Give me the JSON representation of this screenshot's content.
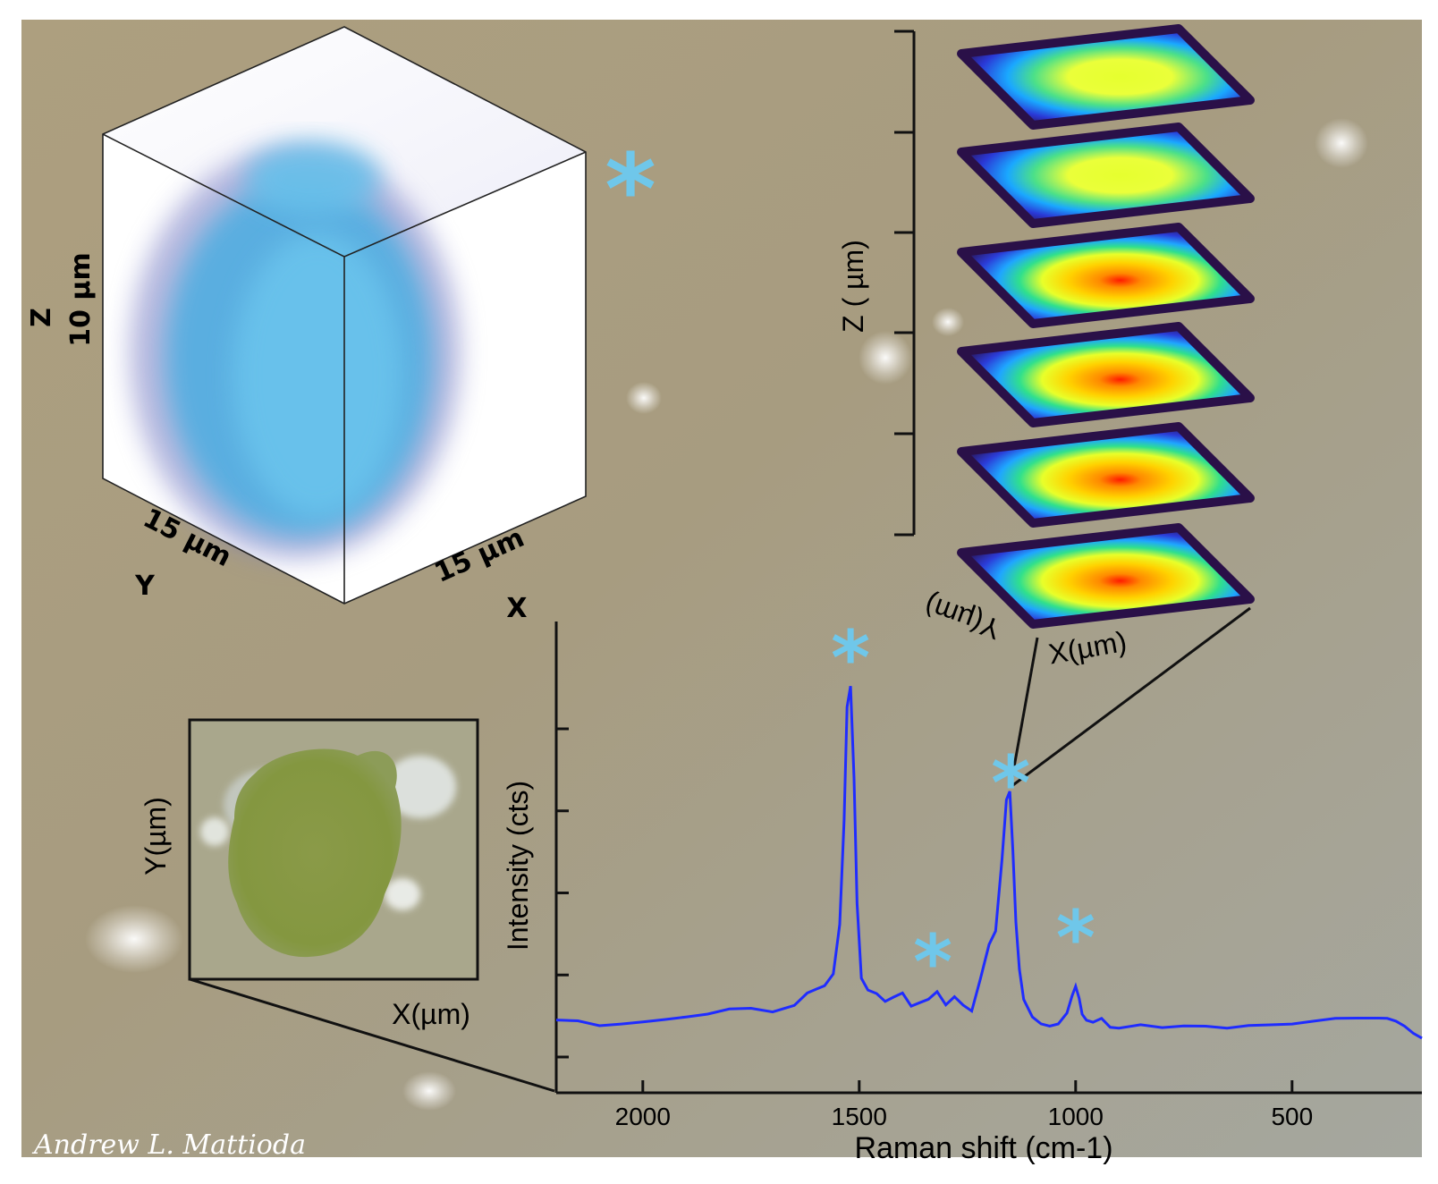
{
  "colors": {
    "background": "#a59a7e",
    "spectrum_line": "#1f2cff",
    "asterisk": "#6fc7ea",
    "cube_blue": "#5fb6e2",
    "cube_edge": "#8080c0"
  },
  "cube": {
    "z_axis": "Z",
    "z_size": "10 µm",
    "y_axis": "Y",
    "y_size": "15 µm",
    "x_axis": "X",
    "x_size": "15 µm"
  },
  "slices": {
    "z_label": "Z ( µm)",
    "x_label": "X(µm)",
    "y_label": "Y(µm)"
  },
  "micrograph": {
    "x_label": "X(µm)",
    "y_label": "Y(µm)"
  },
  "signature": "Andrew L. Mattioda",
  "marker_glyph": "*",
  "chart_data": {
    "type": "line",
    "xlabel": "Raman shift (cm-1)",
    "ylabel": "Intensity (cts)",
    "x_ticks": [
      2000,
      1500,
      1000,
      500
    ],
    "xlim": [
      2200,
      200
    ],
    "x_reversed": true,
    "ylim": [
      0,
      1
    ],
    "y_ticks_unlabeled": 5,
    "grid": false,
    "series": [
      {
        "x": [
          2200,
          2150,
          2100,
          2050,
          2000,
          1950,
          1900,
          1850,
          1800,
          1750,
          1700,
          1650,
          1620,
          1600,
          1580,
          1560,
          1545,
          1535,
          1528,
          1520,
          1512,
          1505,
          1495,
          1480,
          1460,
          1440,
          1420,
          1400,
          1380,
          1360,
          1340,
          1320,
          1300,
          1280,
          1260,
          1240,
          1220,
          1200,
          1185,
          1170,
          1160,
          1152,
          1145,
          1138,
          1130,
          1120,
          1100,
          1080,
          1060,
          1040,
          1020,
          1008,
          1000,
          992,
          985,
          975,
          960,
          940,
          920,
          900,
          850,
          800,
          750,
          700,
          650,
          600,
          550,
          500,
          450,
          400,
          350,
          300,
          280,
          260,
          240,
          220,
          200
        ],
        "y": [
          0.02,
          0.02,
          0.01,
          0.015,
          0.02,
          0.025,
          0.03,
          0.035,
          0.045,
          0.045,
          0.035,
          0.05,
          0.08,
          0.09,
          0.1,
          0.13,
          0.25,
          0.5,
          0.77,
          0.82,
          0.6,
          0.3,
          0.12,
          0.09,
          0.08,
          0.06,
          0.07,
          0.08,
          0.05,
          0.06,
          0.07,
          0.09,
          0.06,
          0.08,
          0.06,
          0.045,
          0.12,
          0.2,
          0.23,
          0.4,
          0.54,
          0.56,
          0.42,
          0.25,
          0.14,
          0.07,
          0.03,
          0.015,
          0.01,
          0.015,
          0.04,
          0.08,
          0.1,
          0.07,
          0.03,
          0.015,
          0.01,
          0.02,
          0.0,
          0.0,
          0.01,
          0.005,
          0.01,
          0.01,
          0.005,
          0.01,
          0.01,
          0.01,
          0.015,
          0.02,
          0.02,
          0.02,
          0.02,
          0.015,
          0.005,
          -0.01,
          -0.02
        ]
      }
    ],
    "marked_peaks": [
      1520,
      1330,
      1150,
      1000
    ]
  }
}
